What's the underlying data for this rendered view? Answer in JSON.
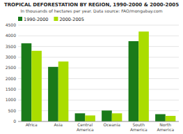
{
  "chart_data": {
    "type": "bar",
    "title": "TROPICAL DEFORESTATION BY REGION, 1990-2000 & 2000-2005",
    "subtitle": "In thousands of hectares per year.  Data source: FAO/mongabay.com",
    "categories": [
      "Africa",
      "Asia",
      "Central\nAmerica",
      "Oceania",
      "South\nAmerica",
      "North\nAmerica"
    ],
    "series": [
      {
        "name": "1990-2000",
        "color": "#1a7a1a",
        "values": [
          3650,
          2550,
          380,
          510,
          3750,
          340
        ]
      },
      {
        "name": "2000-2005",
        "color": "#aadd00",
        "values": [
          3300,
          2800,
          280,
          380,
          4200,
          260
        ]
      }
    ],
    "ylim": [
      0,
      4500
    ],
    "yticks": [
      0,
      500,
      1000,
      1500,
      2000,
      2500,
      3000,
      3500,
      4000,
      4500
    ],
    "grid": true,
    "legend": "upper left"
  }
}
